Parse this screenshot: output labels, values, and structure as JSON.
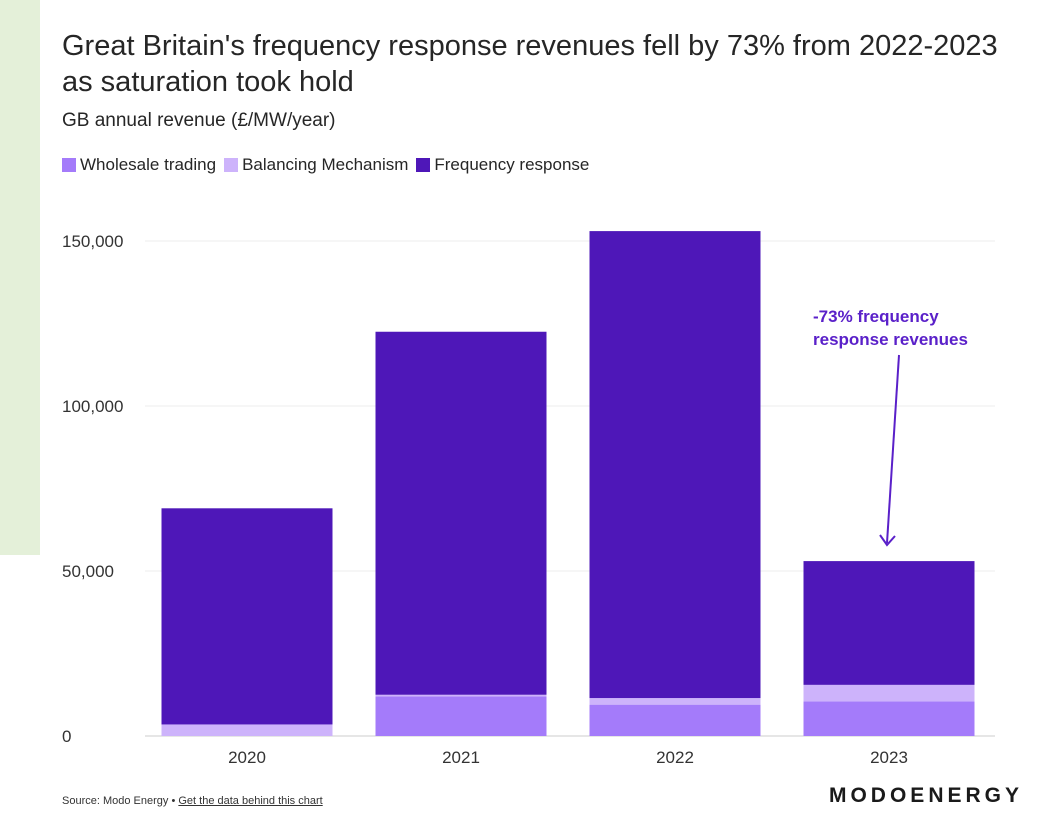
{
  "title": "Great Britain's frequency response revenues fell by 73% from 2022-2023 as saturation took hold",
  "subtitle": "GB annual revenue (£/MW/year)",
  "source": {
    "prefix": "Source: Modo Energy •",
    "link_text": "Get the data behind this chart"
  },
  "logo": "MODOENERGY",
  "annotation": {
    "line1": "-73% frequency",
    "line2": "response revenues",
    "category": "2023"
  },
  "colors": {
    "wholesale": "#a47bfa",
    "balancing": "#cdb3fb",
    "frequency": "#4e17b8",
    "annotation": "#5a20c9"
  },
  "chart_data": {
    "type": "bar",
    "stacked": true,
    "categories": [
      "2020",
      "2021",
      "2022",
      "2023"
    ],
    "series": [
      {
        "name": "Wholesale trading",
        "values": [
          0,
          12000,
          9500,
          10500
        ]
      },
      {
        "name": "Balancing Mechanism",
        "values": [
          3500,
          500,
          2000,
          5000
        ]
      },
      {
        "name": "Frequency response",
        "values": [
          65500,
          110000,
          141500,
          37500
        ]
      }
    ],
    "yticks": [
      0,
      50000,
      100000,
      150000
    ],
    "ytick_labels": [
      "0",
      "50,000",
      "100,000",
      "150,000"
    ],
    "ylim": [
      0,
      150000
    ],
    "grid": true,
    "legend": "top-left"
  }
}
